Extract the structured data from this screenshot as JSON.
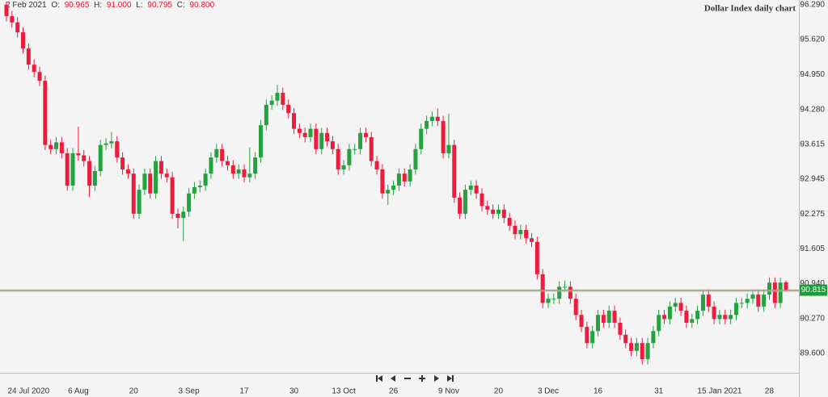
{
  "chart_data": {
    "type": "candlestick",
    "title": "Dollar Index daily chart",
    "readout": {
      "date": "2 Feb 2021",
      "items": [
        {
          "key": "O:",
          "value": "90.965"
        },
        {
          "key": "H:",
          "value": "91.000"
        },
        {
          "key": "L:",
          "value": "90.795"
        },
        {
          "key": "C:",
          "value": "90.800"
        }
      ]
    },
    "last_price": {
      "value": 90.815,
      "label": "90.815"
    },
    "up_color": "#22a33e",
    "down_color": "#ee1c3c",
    "price_line_color": "#b9907a",
    "price_label_color": "#1f9a3a",
    "ylim": [
      89.23,
      96.38
    ],
    "yticks": [
      {
        "value": 96.29,
        "label": "96.290"
      },
      {
        "value": 95.62,
        "label": "95.620"
      },
      {
        "value": 94.95,
        "label": "94.950"
      },
      {
        "value": 94.28,
        "label": "94.280"
      },
      {
        "value": 93.615,
        "label": "93.615"
      },
      {
        "value": 92.945,
        "label": "92.945"
      },
      {
        "value": 92.275,
        "label": "92.275"
      },
      {
        "value": 91.605,
        "label": "91.605"
      },
      {
        "value": 90.94,
        "label": "90.940"
      },
      {
        "value": 90.27,
        "label": "90.270"
      },
      {
        "value": 89.6,
        "label": "89.600"
      }
    ],
    "categories": [
      null,
      null,
      null,
      null,
      "24 Jul 2020",
      null,
      null,
      null,
      null,
      null,
      null,
      null,
      null,
      "6 Aug",
      null,
      null,
      null,
      null,
      null,
      null,
      null,
      null,
      null,
      "20",
      null,
      null,
      null,
      null,
      null,
      null,
      null,
      null,
      null,
      "3 Sep",
      null,
      null,
      null,
      null,
      null,
      null,
      null,
      null,
      null,
      "17",
      null,
      null,
      null,
      null,
      null,
      null,
      null,
      null,
      "30",
      null,
      null,
      null,
      null,
      null,
      null,
      null,
      null,
      "13 Oct",
      null,
      null,
      null,
      null,
      null,
      null,
      null,
      null,
      "26",
      null,
      null,
      null,
      null,
      null,
      null,
      null,
      null,
      null,
      "9 Nov",
      null,
      null,
      null,
      null,
      null,
      null,
      null,
      null,
      "20",
      null,
      null,
      null,
      null,
      null,
      null,
      null,
      null,
      "3 Dec",
      null,
      null,
      null,
      null,
      null,
      null,
      null,
      null,
      "16",
      null,
      null,
      null,
      null,
      null,
      null,
      null,
      null,
      null,
      null,
      "31",
      null,
      null,
      null,
      null,
      null,
      null,
      null,
      null,
      null,
      null,
      "15 Jan 2021",
      null,
      null,
      null,
      null,
      null,
      null,
      null,
      null,
      "28",
      null,
      null,
      null
    ],
    "open": [
      96.29,
      96.07,
      95.95,
      95.76,
      95.45,
      95.14,
      95.0,
      94.83,
      93.6,
      93.52,
      93.65,
      93.44,
      92.82,
      93.44,
      93.4,
      93.29,
      92.82,
      93.1,
      93.6,
      93.63,
      93.67,
      93.36,
      93.13,
      93.05,
      92.28,
      92.74,
      93.05,
      92.67,
      93.29,
      93.05,
      92.98,
      92.28,
      92.2,
      92.32,
      92.67,
      92.79,
      92.82,
      93.05,
      93.36,
      93.52,
      93.29,
      93.21,
      93.05,
      93.13,
      92.98,
      93.05,
      93.36,
      93.98,
      94.37,
      94.45,
      94.6,
      94.37,
      94.21,
      93.91,
      93.83,
      93.75,
      93.91,
      93.52,
      93.83,
      93.67,
      93.52,
      93.13,
      93.21,
      93.52,
      93.52,
      93.83,
      93.75,
      93.29,
      93.13,
      92.67,
      92.74,
      92.82,
      93.05,
      92.9,
      93.13,
      93.52,
      93.91,
      94.06,
      94.14,
      94.06,
      93.44,
      93.6,
      92.59,
      92.28,
      92.74,
      92.82,
      92.67,
      92.43,
      92.36,
      92.28,
      92.36,
      92.2,
      92.05,
      91.89,
      91.97,
      91.81,
      91.74,
      91.12,
      90.57,
      90.65,
      90.65,
      90.88,
      90.88,
      90.65,
      90.34,
      90.11,
      89.8,
      90.03,
      90.34,
      90.19,
      90.42,
      90.19,
      89.96,
      89.8,
      89.65,
      89.8,
      89.49,
      89.8,
      90.03,
      90.34,
      90.26,
      90.5,
      90.57,
      90.42,
      90.19,
      90.26,
      90.42,
      90.73,
      90.5,
      90.26,
      90.34,
      90.26,
      90.34,
      90.57,
      90.57,
      90.65,
      90.73,
      90.5,
      90.73,
      90.96,
      90.57,
      90.965
    ],
    "high": [
      96.35,
      96.17,
      96.05,
      95.86,
      95.55,
      95.24,
      95.1,
      94.93,
      93.7,
      93.75,
      93.75,
      93.54,
      93.54,
      93.95,
      93.5,
      93.39,
      93.2,
      93.7,
      93.73,
      93.85,
      93.77,
      93.46,
      93.23,
      93.15,
      92.84,
      93.15,
      93.15,
      93.39,
      93.39,
      93.15,
      93.08,
      92.38,
      92.42,
      92.77,
      92.89,
      92.92,
      93.15,
      93.46,
      93.62,
      93.62,
      93.39,
      93.31,
      93.23,
      93.23,
      93.55,
      93.46,
      94.08,
      94.47,
      94.55,
      94.75,
      94.7,
      94.47,
      94.31,
      94.01,
      93.93,
      94.01,
      94.01,
      93.93,
      93.93,
      93.77,
      93.62,
      93.31,
      93.62,
      93.62,
      93.93,
      93.93,
      93.85,
      93.39,
      93.23,
      92.84,
      92.92,
      93.15,
      93.15,
      93.23,
      93.62,
      94.01,
      94.16,
      94.24,
      94.3,
      94.16,
      94.2,
      93.7,
      92.69,
      92.84,
      92.92,
      92.92,
      92.77,
      92.53,
      92.46,
      92.46,
      92.46,
      92.3,
      92.15,
      92.07,
      92.07,
      91.91,
      91.84,
      91.22,
      90.75,
      90.75,
      90.98,
      91.0,
      90.98,
      90.75,
      90.44,
      90.21,
      90.13,
      90.44,
      90.44,
      90.52,
      90.52,
      90.29,
      90.06,
      89.9,
      89.9,
      89.9,
      89.9,
      90.13,
      90.44,
      90.44,
      90.6,
      90.67,
      90.67,
      90.52,
      90.36,
      90.52,
      90.83,
      90.83,
      90.6,
      90.44,
      90.44,
      90.44,
      90.67,
      90.67,
      90.75,
      90.83,
      90.83,
      90.83,
      91.06,
      91.06,
      91.06,
      91.0
    ],
    "low": [
      95.97,
      95.85,
      95.66,
      95.35,
      95.04,
      94.9,
      94.73,
      93.5,
      93.42,
      93.42,
      93.34,
      92.72,
      92.72,
      93.3,
      93.19,
      92.6,
      92.72,
      93.0,
      93.5,
      93.53,
      93.26,
      93.03,
      92.95,
      92.18,
      92.18,
      92.64,
      92.57,
      92.57,
      92.95,
      92.88,
      92.18,
      92.0,
      91.75,
      92.22,
      92.57,
      92.69,
      92.72,
      92.95,
      93.26,
      93.19,
      93.11,
      92.95,
      92.95,
      92.88,
      92.88,
      92.95,
      93.26,
      93.88,
      94.27,
      94.35,
      94.27,
      94.11,
      93.81,
      93.73,
      93.65,
      93.65,
      93.42,
      93.42,
      93.57,
      93.42,
      93.03,
      93.03,
      93.11,
      93.42,
      93.42,
      93.65,
      93.19,
      93.03,
      92.57,
      92.45,
      92.64,
      92.72,
      92.8,
      92.8,
      93.03,
      93.42,
      93.81,
      93.96,
      93.96,
      93.34,
      93.34,
      92.49,
      92.18,
      92.18,
      92.64,
      92.57,
      92.33,
      92.26,
      92.18,
      92.18,
      92.1,
      91.95,
      91.79,
      91.79,
      91.71,
      91.64,
      91.02,
      90.47,
      90.47,
      90.55,
      90.55,
      90.78,
      90.55,
      90.24,
      90.01,
      89.7,
      89.7,
      89.93,
      90.09,
      90.09,
      90.09,
      89.86,
      89.7,
      89.55,
      89.55,
      89.39,
      89.39,
      89.7,
      89.93,
      90.16,
      90.16,
      90.4,
      90.32,
      90.09,
      90.09,
      90.16,
      90.32,
      90.4,
      90.16,
      90.16,
      90.16,
      90.16,
      90.24,
      90.47,
      90.47,
      90.55,
      90.4,
      90.4,
      90.63,
      90.47,
      90.47,
      90.795
    ],
    "close": [
      96.07,
      95.95,
      95.76,
      95.45,
      95.14,
      95.0,
      94.83,
      93.6,
      93.52,
      93.65,
      93.44,
      92.82,
      93.44,
      93.4,
      93.29,
      92.82,
      93.1,
      93.6,
      93.63,
      93.67,
      93.36,
      93.13,
      93.05,
      92.28,
      92.74,
      93.05,
      92.67,
      93.29,
      93.05,
      92.98,
      92.28,
      92.2,
      92.32,
      92.67,
      92.79,
      92.82,
      93.05,
      93.36,
      93.52,
      93.29,
      93.21,
      93.05,
      93.13,
      92.98,
      93.05,
      93.36,
      93.98,
      94.37,
      94.45,
      94.6,
      94.37,
      94.21,
      93.91,
      93.83,
      93.75,
      93.91,
      93.52,
      93.83,
      93.67,
      93.52,
      93.13,
      93.21,
      93.52,
      93.52,
      93.83,
      93.75,
      93.29,
      93.13,
      92.67,
      92.74,
      92.82,
      93.05,
      92.9,
      93.13,
      93.52,
      93.91,
      94.06,
      94.14,
      94.06,
      93.44,
      93.6,
      92.59,
      92.28,
      92.74,
      92.82,
      92.67,
      92.43,
      92.36,
      92.28,
      92.36,
      92.2,
      92.05,
      91.89,
      91.97,
      91.81,
      91.74,
      91.12,
      90.57,
      90.65,
      90.65,
      90.88,
      90.88,
      90.65,
      90.34,
      90.11,
      89.8,
      90.03,
      90.34,
      90.19,
      90.42,
      90.19,
      89.96,
      89.8,
      89.65,
      89.8,
      89.49,
      89.8,
      90.03,
      90.34,
      90.26,
      90.5,
      90.57,
      90.42,
      90.19,
      90.26,
      90.42,
      90.73,
      90.5,
      90.26,
      90.34,
      90.26,
      90.34,
      90.57,
      90.57,
      90.65,
      90.73,
      90.5,
      90.73,
      90.96,
      90.57,
      90.96,
      90.8
    ]
  }
}
